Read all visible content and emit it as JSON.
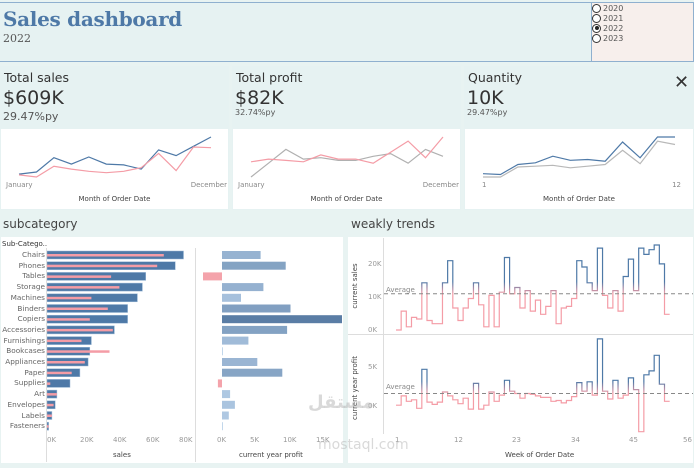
{
  "header": {
    "title": "Sales dashboard",
    "subtitle": "2022"
  },
  "year_filter": {
    "options": [
      "2020",
      "2021",
      "2022",
      "2023"
    ],
    "selected": "2022"
  },
  "kpis": [
    {
      "label": "Total sales",
      "value": "$609K",
      "py": "29.47%py",
      "x_start": "January",
      "x_end": "December",
      "x_title": "Month of Order Date",
      "series": [
        {
          "name": "current",
          "color": "#4e79a7",
          "values": [
            38,
            41,
            61,
            52,
            62,
            52,
            51,
            45,
            72,
            64,
            77,
            90
          ]
        },
        {
          "name": "previous",
          "color": "#f49ca6",
          "values": [
            37,
            34,
            49,
            45,
            42,
            40,
            42,
            47,
            67,
            43,
            76,
            75
          ]
        }
      ]
    },
    {
      "label": "Total profit",
      "value": "$82K",
      "py": "32.74%py",
      "x_start": "January",
      "x_end": "December",
      "x_title": "Month of Order Date",
      "series": [
        {
          "name": "previous",
          "color": "#b0b0b0",
          "values": [
            2,
            12,
            22,
            15,
            16,
            14,
            14,
            17,
            19,
            12,
            22,
            17
          ]
        },
        {
          "name": "current",
          "color": "#f49ca6",
          "values": [
            13,
            15,
            14,
            13,
            18,
            15,
            15,
            12,
            20,
            28,
            16,
            31
          ]
        }
      ]
    },
    {
      "label": "Quantity",
      "value": "10K",
      "py": "29.47%py",
      "x_start": "1",
      "x_end": "12",
      "x_title": "Month of Order Date",
      "series": [
        {
          "name": "previous",
          "color": "#b8b8b8",
          "values": [
            18,
            18,
            30,
            31,
            32,
            29,
            31,
            33,
            50,
            34,
            61,
            57
          ]
        },
        {
          "name": "current",
          "color": "#4e79a7",
          "values": [
            22,
            21,
            33,
            35,
            43,
            38,
            39,
            37,
            60,
            41,
            66,
            66
          ]
        }
      ]
    }
  ],
  "close_label": "✕",
  "subcategory": {
    "title": "subcategory",
    "column_header": "Sub-Catego..",
    "categories": [
      "Chairs",
      "Phones",
      "Tables",
      "Storage",
      "Machines",
      "Binders",
      "Copiers",
      "Accessories",
      "Furnishings",
      "Bookcases",
      "Appliances",
      "Paper",
      "Supplies",
      "Art",
      "Envelopes",
      "Labels",
      "Fasteners"
    ],
    "sales_current": [
      83,
      78,
      60,
      58,
      55,
      49,
      49,
      41,
      27,
      26,
      25,
      20,
      14,
      6,
      5,
      3,
      1
    ],
    "sales_previous": [
      71,
      67,
      39,
      44,
      27,
      37,
      26,
      40,
      21,
      38,
      23,
      15,
      2,
      6,
      4,
      3,
      1
    ],
    "profit": [
      5.7,
      9.4,
      -2.8,
      6.1,
      2.8,
      10.1,
      17.7,
      9.6,
      3.9,
      0.1,
      5.2,
      8.9,
      -0.6,
      1.2,
      1.9,
      1.0,
      0.1
    ],
    "sales_ticks": [
      "0K",
      "20K",
      "40K",
      "60K",
      "80K"
    ],
    "sales_axis_title": "sales",
    "profit_ticks": [
      "0K",
      "5K",
      "10K",
      "15K"
    ],
    "profit_axis_title": "current year profit",
    "colors": {
      "sales_current": "#4e79a7",
      "sales_previous": "#f49ca6",
      "profit_negative": "#f4a3ab"
    }
  },
  "weekly": {
    "title": "weakly trends",
    "sales_axis_title": "current sales",
    "profit_axis_title": "current year profit",
    "average_label": "Average",
    "sales_ticks": [
      "0K",
      "10K",
      "20K"
    ],
    "profit_ticks": [
      "0K",
      "5K"
    ],
    "x_ticks": [
      "1",
      "12",
      "23",
      "34",
      "45",
      "56"
    ],
    "x_axis_title": "Week of Order Date",
    "sales_average": 11.5,
    "profit_average": 1.6,
    "sales_values": [
      0,
      6,
      1,
      4,
      3.5,
      15,
      3,
      2,
      2,
      15,
      22,
      7,
      3,
      7,
      10,
      15,
      8,
      1,
      11,
      1,
      12,
      23,
      11.5,
      13.5,
      7,
      12.5,
      6,
      9.5,
      5,
      7.5,
      12.5,
      2,
      7,
      7.5,
      10,
      22,
      20,
      15,
      12.5,
      26,
      11,
      7,
      12.5,
      6,
      17,
      22.5,
      12.5,
      26,
      24,
      25.5,
      27,
      21,
      5
    ],
    "profit_values": [
      0.1,
      1.3,
      0.6,
      0.8,
      -0.3,
      4.7,
      0.5,
      0.2,
      0.5,
      1.8,
      1.3,
      0.8,
      0.3,
      1.0,
      -0.4,
      2.9,
      -0.4,
      0.1,
      1.8,
      0.6,
      1.4,
      3.3,
      1.9,
      1.6,
      1.0,
      1.6,
      1.5,
      1.3,
      1.1,
      1.1,
      0.6,
      0.7,
      0.4,
      0.7,
      1.2,
      3.0,
      1.9,
      3.1,
      1.4,
      8.6,
      1.9,
      0.9,
      3.3,
      1.0,
      1.4,
      3.6,
      2.1,
      -3.3,
      4.0,
      4.5,
      6.5,
      2.8,
      0.6
    ],
    "colors": {
      "above": "#4e79a7",
      "below": "#f49ca6"
    }
  },
  "watermark": {
    "line1": "مستقل",
    "line2": "mostaql.com"
  }
}
